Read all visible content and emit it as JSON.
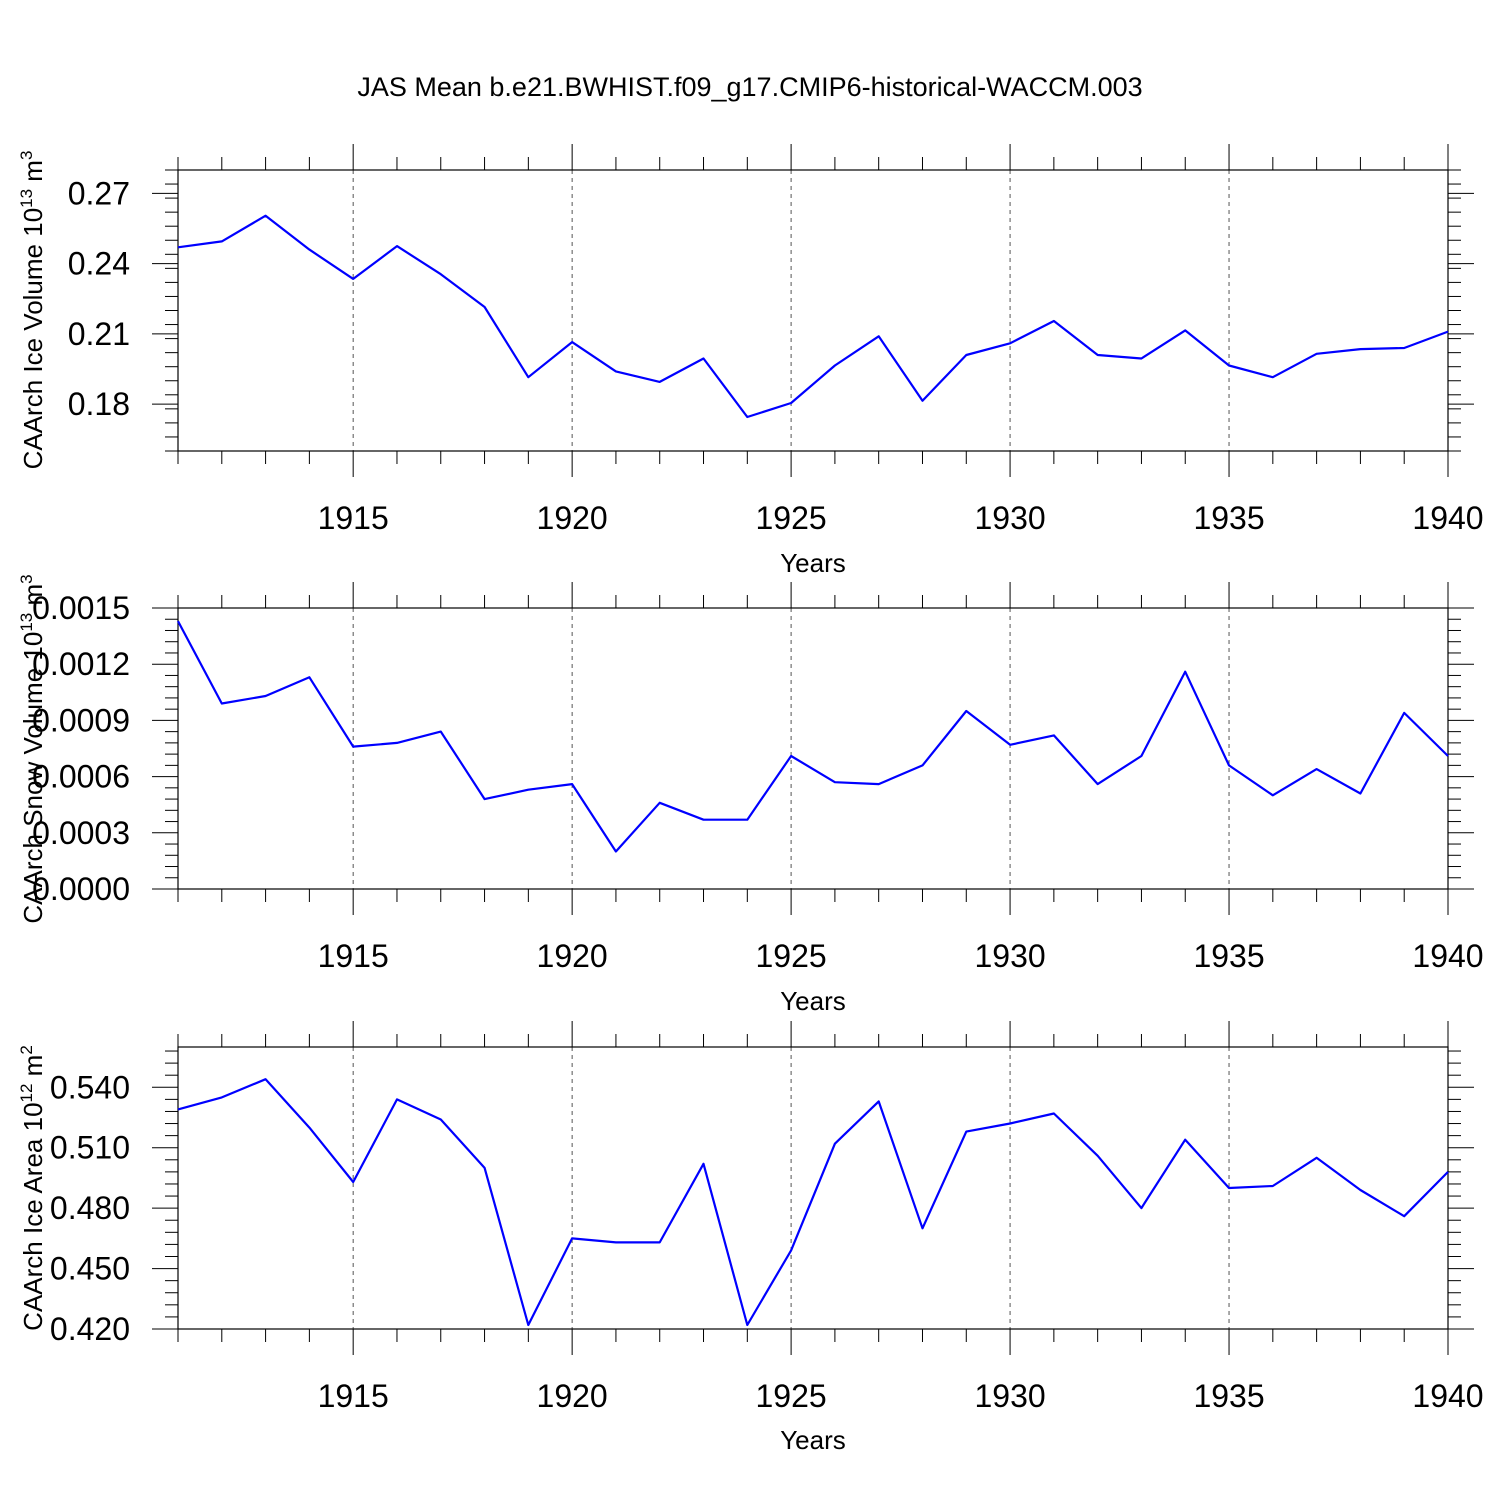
{
  "title": "JAS Mean b.e21.BWHIST.f09_g17.CMIP6-historical-WACCM.003",
  "colors": {
    "line": "#0000ff",
    "axes": "#000000",
    "grid": "#555555"
  },
  "chart_data": [
    {
      "type": "line",
      "title": "",
      "xlabel": "Years",
      "ylabel": {
        "main": "CAArch Ice Volume 10",
        "exp": "13",
        "unit": " m",
        "unit_exp": "3"
      },
      "x": [
        1911,
        1912,
        1913,
        1914,
        1915,
        1916,
        1917,
        1918,
        1919,
        1920,
        1921,
        1922,
        1923,
        1924,
        1925,
        1926,
        1927,
        1928,
        1929,
        1930,
        1931,
        1932,
        1933,
        1934,
        1935,
        1936,
        1937,
        1938,
        1939,
        1940
      ],
      "series": [
        {
          "name": "CAArch Ice Volume",
          "values": [
            0.247,
            0.2495,
            0.2605,
            0.246,
            0.2335,
            0.2475,
            0.2355,
            0.2215,
            0.1915,
            0.2065,
            0.194,
            0.1895,
            0.1995,
            0.1745,
            0.1805,
            0.1965,
            0.209,
            0.1815,
            0.201,
            0.206,
            0.2155,
            0.201,
            0.1995,
            0.2115,
            0.1965,
            0.1915,
            0.2015,
            0.2035,
            0.204,
            0.211
          ]
        }
      ],
      "xlim": [
        1911,
        1940
      ],
      "ylim": [
        0.16,
        0.28
      ],
      "xticks": [
        "1915",
        "1920",
        "1925",
        "1930",
        "1935",
        "1940"
      ],
      "yticks": [
        "0.18",
        "0.21",
        "0.24",
        "0.27"
      ],
      "grid": "vertical dashed at major x ticks"
    },
    {
      "type": "line",
      "title": "",
      "xlabel": "Years",
      "ylabel": {
        "main": "CAArch Snow Volume 10",
        "exp": "13",
        "unit": " m",
        "unit_exp": "3"
      },
      "x": [
        1911,
        1912,
        1913,
        1914,
        1915,
        1916,
        1917,
        1918,
        1919,
        1920,
        1921,
        1922,
        1923,
        1924,
        1925,
        1926,
        1927,
        1928,
        1929,
        1930,
        1931,
        1932,
        1933,
        1934,
        1935,
        1936,
        1937,
        1938,
        1939,
        1940
      ],
      "series": [
        {
          "name": "CAArch Snow Volume",
          "values": [
            0.00143,
            0.00099,
            0.00103,
            0.00113,
            0.00076,
            0.00078,
            0.00084,
            0.00048,
            0.00053,
            0.00056,
            0.0002,
            0.00046,
            0.00037,
            0.00037,
            0.00071,
            0.00057,
            0.00056,
            0.00066,
            0.00095,
            0.00077,
            0.00082,
            0.00056,
            0.00071,
            0.00116,
            0.00066,
            0.0005,
            0.00064,
            0.00051,
            0.00094,
            0.00071
          ]
        }
      ],
      "xlim": [
        1911,
        1940
      ],
      "ylim": [
        0.0,
        0.0015
      ],
      "xticks": [
        "1915",
        "1920",
        "1925",
        "1930",
        "1935",
        "1940"
      ],
      "yticks": [
        "0.0000",
        "0.0003",
        "0.0006",
        "0.0009",
        "0.0012",
        "0.0015"
      ],
      "grid": "vertical dashed at major x ticks"
    },
    {
      "type": "line",
      "title": "",
      "xlabel": "Years",
      "ylabel": {
        "main": "CAArch Ice Area 10",
        "exp": "12",
        "unit": " m",
        "unit_exp": "2"
      },
      "x": [
        1911,
        1912,
        1913,
        1914,
        1915,
        1916,
        1917,
        1918,
        1919,
        1920,
        1921,
        1922,
        1923,
        1924,
        1925,
        1926,
        1927,
        1928,
        1929,
        1930,
        1931,
        1932,
        1933,
        1934,
        1935,
        1936,
        1937,
        1938,
        1939,
        1940
      ],
      "series": [
        {
          "name": "CAArch Ice Area",
          "values": [
            0.529,
            0.535,
            0.544,
            0.52,
            0.493,
            0.534,
            0.524,
            0.5,
            0.422,
            0.465,
            0.463,
            0.463,
            0.502,
            0.422,
            0.459,
            0.512,
            0.533,
            0.47,
            0.518,
            0.522,
            0.527,
            0.506,
            0.48,
            0.514,
            0.49,
            0.491,
            0.505,
            0.489,
            0.476,
            0.498
          ]
        }
      ],
      "xlim": [
        1911,
        1940
      ],
      "ylim": [
        0.42,
        0.56
      ],
      "xticks": [
        "1915",
        "1920",
        "1925",
        "1930",
        "1935",
        "1940"
      ],
      "yticks": [
        "0.420",
        "0.450",
        "0.480",
        "0.510",
        "0.540"
      ],
      "grid": "vertical dashed at major x ticks"
    }
  ]
}
